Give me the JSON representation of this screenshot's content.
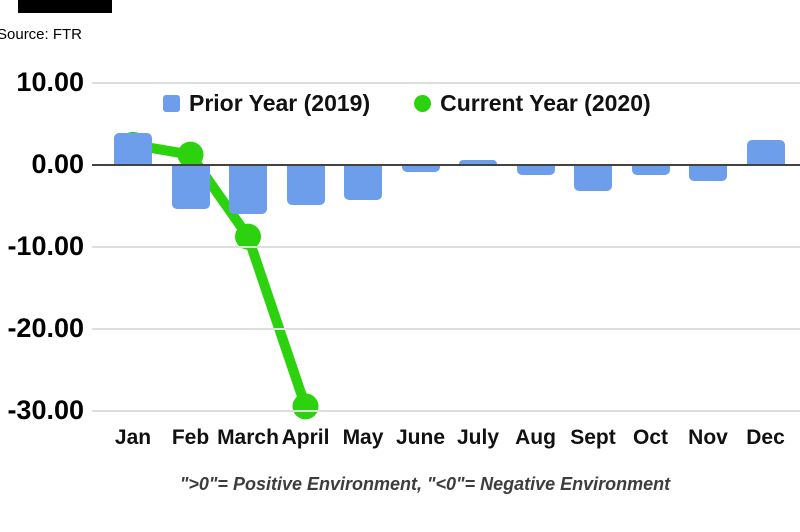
{
  "source_label": "Source: FTR",
  "legend": {
    "prior_label": "Prior Year (2019)",
    "current_label": "Current Year (2020)"
  },
  "caption": "\">0\"= Positive Environment, \"<0\"= Negative Environment",
  "colors": {
    "bar_blue": "#6d9eeb",
    "line_green": "#2bd20d",
    "zero_axis": "#424242",
    "gridline": "#dedede",
    "text": "#111111"
  },
  "chart_data": {
    "type": "bar",
    "title": "",
    "xlabel": "",
    "ylabel": "",
    "categories": [
      "Jan",
      "Feb",
      "March",
      "April",
      "May",
      "June",
      "July",
      "Aug",
      "Sept",
      "Oct",
      "Nov",
      "Dec"
    ],
    "series": [
      {
        "name": "Prior Year (2019)",
        "type": "bar",
        "color": "#6d9eeb",
        "values": [
          3.8,
          -5.3,
          -5.9,
          -4.8,
          -4.2,
          -0.8,
          0.5,
          -1.2,
          -3.1,
          -1.2,
          -1.9,
          3.0
        ]
      },
      {
        "name": "Current Year (2020)",
        "type": "line",
        "color": "#2bd20d",
        "values": [
          2.4,
          1.2,
          -8.8,
          -29.5,
          null,
          null,
          null,
          null,
          null,
          null,
          null,
          null
        ]
      }
    ],
    "y_ticks": [
      10,
      0,
      -10,
      -20,
      -30
    ],
    "y_tick_labels": [
      "10.00",
      "0.00",
      "-10.00",
      "-20.00",
      "-30.00"
    ],
    "ylim": [
      -33,
      12
    ],
    "grid": true,
    "legend_position": "top",
    "annotation": "\">0\"= Positive Environment, \"<0\"= Negative Environment"
  }
}
